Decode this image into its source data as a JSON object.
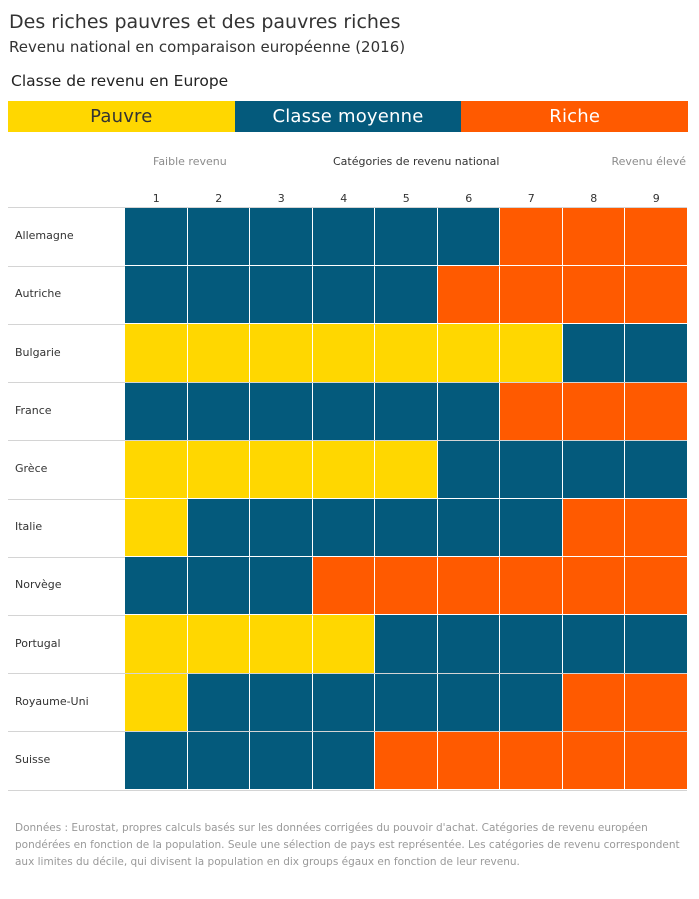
{
  "header": {
    "title": "Des riches pauvres et des pauvres riches",
    "subtitle": "Revenu national en comparaison européenne (2016)"
  },
  "legend": {
    "title": "Classe de revenu en Europe",
    "items": [
      {
        "label": "Pauvre",
        "color": "#FFD700",
        "text_color": "#333333"
      },
      {
        "label": "Classe moyenne",
        "color": "#045A7C",
        "text_color": "#ffffff"
      },
      {
        "label": "Riche",
        "color": "#FF5A00",
        "text_color": "#ffffff"
      }
    ]
  },
  "axis": {
    "left_note": "Faible revenu",
    "title": "Catégories de revenu national",
    "right_note": "Revenu élevé"
  },
  "chart_data": {
    "type": "heatmap",
    "title": "Des riches pauvres et des pauvres riches",
    "subtitle": "Revenu national en comparaison européenne (2016)",
    "xlabel": "Catégories de revenu national",
    "x": [
      "1",
      "2",
      "3",
      "4",
      "5",
      "6",
      "7",
      "8",
      "9"
    ],
    "y": [
      "Allemagne",
      "Autriche",
      "Bulgarie",
      "France",
      "Grèce",
      "Italie",
      "Norvège",
      "Portugal",
      "Royaume-Uni",
      "Suisse"
    ],
    "categories": [
      "Pauvre",
      "Classe moyenne",
      "Riche"
    ],
    "values": [
      [
        1,
        1,
        1,
        1,
        1,
        1,
        2,
        2,
        2
      ],
      [
        1,
        1,
        1,
        1,
        1,
        2,
        2,
        2,
        2
      ],
      [
        0,
        0,
        0,
        0,
        0,
        0,
        0,
        1,
        1
      ],
      [
        1,
        1,
        1,
        1,
        1,
        1,
        2,
        2,
        2
      ],
      [
        0,
        0,
        0,
        0,
        0,
        1,
        1,
        1,
        1
      ],
      [
        0,
        1,
        1,
        1,
        1,
        1,
        1,
        2,
        2
      ],
      [
        1,
        1,
        1,
        2,
        2,
        2,
        2,
        2,
        2
      ],
      [
        0,
        0,
        0,
        0,
        1,
        1,
        1,
        1,
        1
      ],
      [
        0,
        1,
        1,
        1,
        1,
        1,
        1,
        2,
        2
      ],
      [
        1,
        1,
        1,
        1,
        2,
        2,
        2,
        2,
        2
      ]
    ],
    "legend_position": "top",
    "colors": {
      "Pauvre": "#FFD700",
      "Classe moyenne": "#045A7C",
      "Riche": "#FF5A00"
    }
  },
  "footnote": "Données : Eurostat, propres calculs basés sur les données corrigées du pouvoir d'achat. Catégories de revenu européen pondérées en fonction de la population. Seule une sélection de pays est représentée. Les catégories de revenu correspondent aux limites du décile, qui divisent la population en dix groups égaux en fonction de leur revenu."
}
